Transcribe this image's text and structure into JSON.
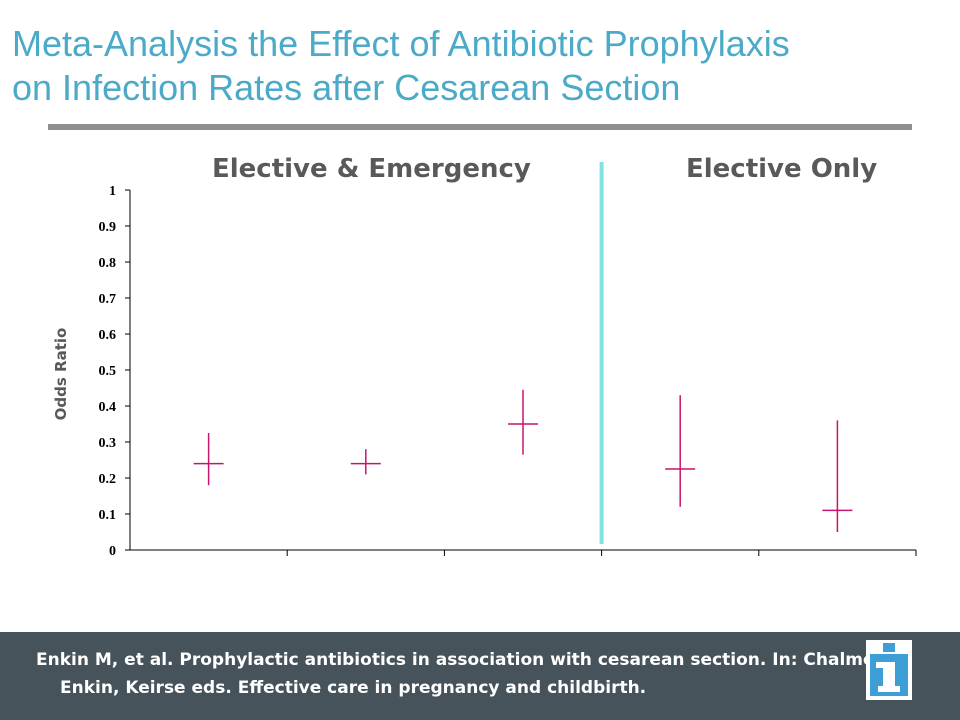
{
  "title": {
    "line1": "Meta-Analysis the Effect of Antibiotic Prophylaxis",
    "line2": "on Infection Rates after Cesarean Section"
  },
  "panels": {
    "left": "Elective & Emergency",
    "right": "Elective Only"
  },
  "chart_data": {
    "type": "scatter",
    "ylabel": "Odds Ratio",
    "ylim": [
      0,
      1
    ],
    "yticks": [
      "0",
      "0.1",
      "0.2",
      "0.3",
      "0.4",
      "0.5",
      "0.6",
      "0.7",
      "0.8",
      "0.9",
      "1"
    ],
    "series": [
      {
        "points": [
          {
            "x": 1,
            "y": 0.24,
            "low": 0.18,
            "high": 0.325
          },
          {
            "x": 2,
            "y": 0.24,
            "low": 0.21,
            "high": 0.28
          },
          {
            "x": 3,
            "y": 0.35,
            "low": 0.265,
            "high": 0.445
          },
          {
            "x": 4,
            "y": 0.225,
            "low": 0.12,
            "high": 0.43
          },
          {
            "x": 5,
            "y": 0.11,
            "low": 0.05,
            "high": 0.36
          }
        ]
      }
    ],
    "divider_after_x": 3,
    "colors": {
      "marker": "#c8146e",
      "divider": "#7fe3e3",
      "axis": "#000000"
    }
  },
  "citation": {
    "line1": "Enkin M, et al. Prophylactic antibiotics in association with cesarean section. In: Chalmers,",
    "line2": "Enkin, Keirse eds. Effective care in pregnancy and childbirth."
  },
  "logo": {
    "icon": "info-i-icon",
    "color": "#3e9fd6"
  }
}
